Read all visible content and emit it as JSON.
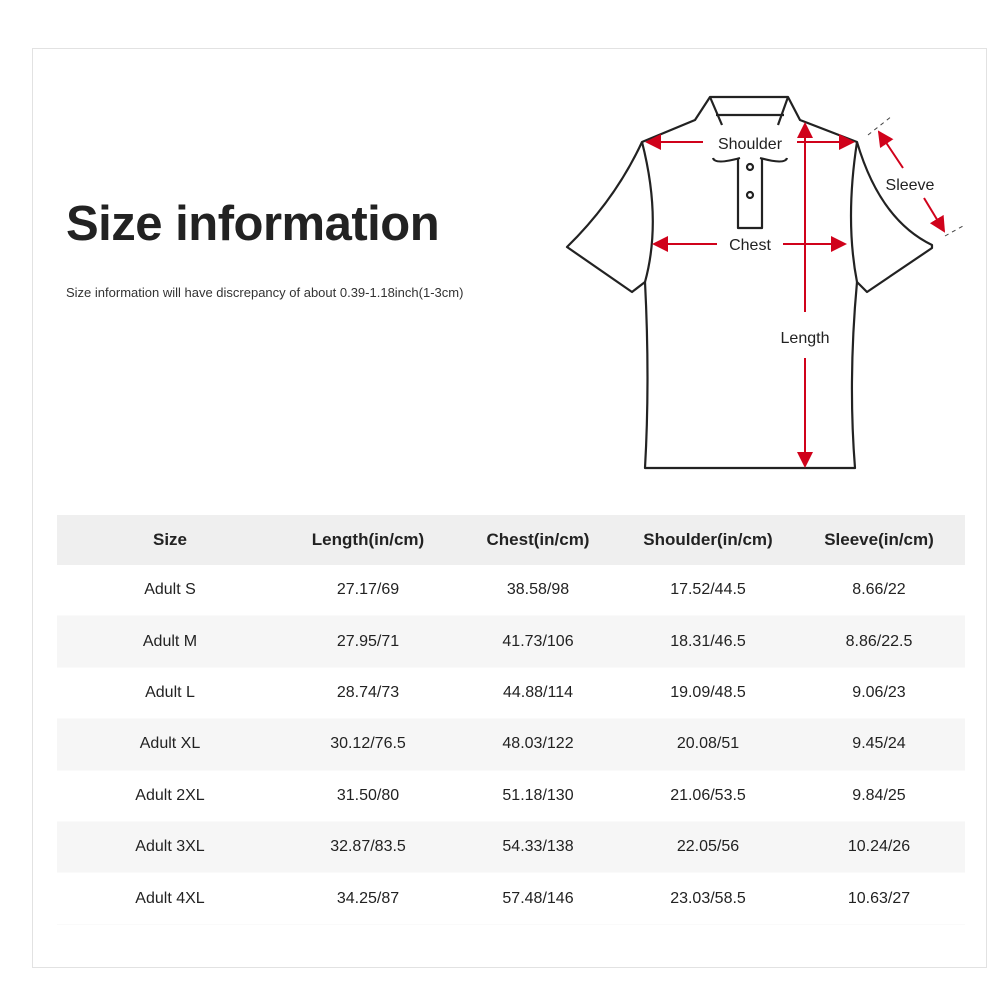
{
  "title": "Size information",
  "note": "Size information will have discrepancy of about 0.39-1.18inch(1-3cm)",
  "diagram": {
    "shoulder": "Shoulder",
    "sleeve": "Sleeve",
    "chest": "Chest",
    "length": "Length",
    "arrow_color": "#d0021b"
  },
  "table": {
    "headers": [
      "Size",
      "Length(in/cm)",
      "Chest(in/cm)",
      "Shoulder(in/cm)",
      "Sleeve(in/cm)"
    ],
    "rows": [
      [
        "Adult S",
        "27.17/69",
        "38.58/98",
        "17.52/44.5",
        "8.66/22"
      ],
      [
        "Adult M",
        "27.95/71",
        "41.73/106",
        "18.31/46.5",
        "8.86/22.5"
      ],
      [
        "Adult L",
        "28.74/73",
        "44.88/114",
        "19.09/48.5",
        "9.06/23"
      ],
      [
        "Adult XL",
        "30.12/76.5",
        "48.03/122",
        "20.08/51",
        "9.45/24"
      ],
      [
        "Adult 2XL",
        "31.50/80",
        "51.18/130",
        "21.06/53.5",
        "9.84/25"
      ],
      [
        "Adult 3XL",
        "32.87/83.5",
        "54.33/138",
        "22.05/56",
        "10.24/26"
      ],
      [
        "Adult 4XL",
        "34.25/87",
        "57.48/146",
        "23.03/58.5",
        "10.63/27"
      ]
    ]
  }
}
